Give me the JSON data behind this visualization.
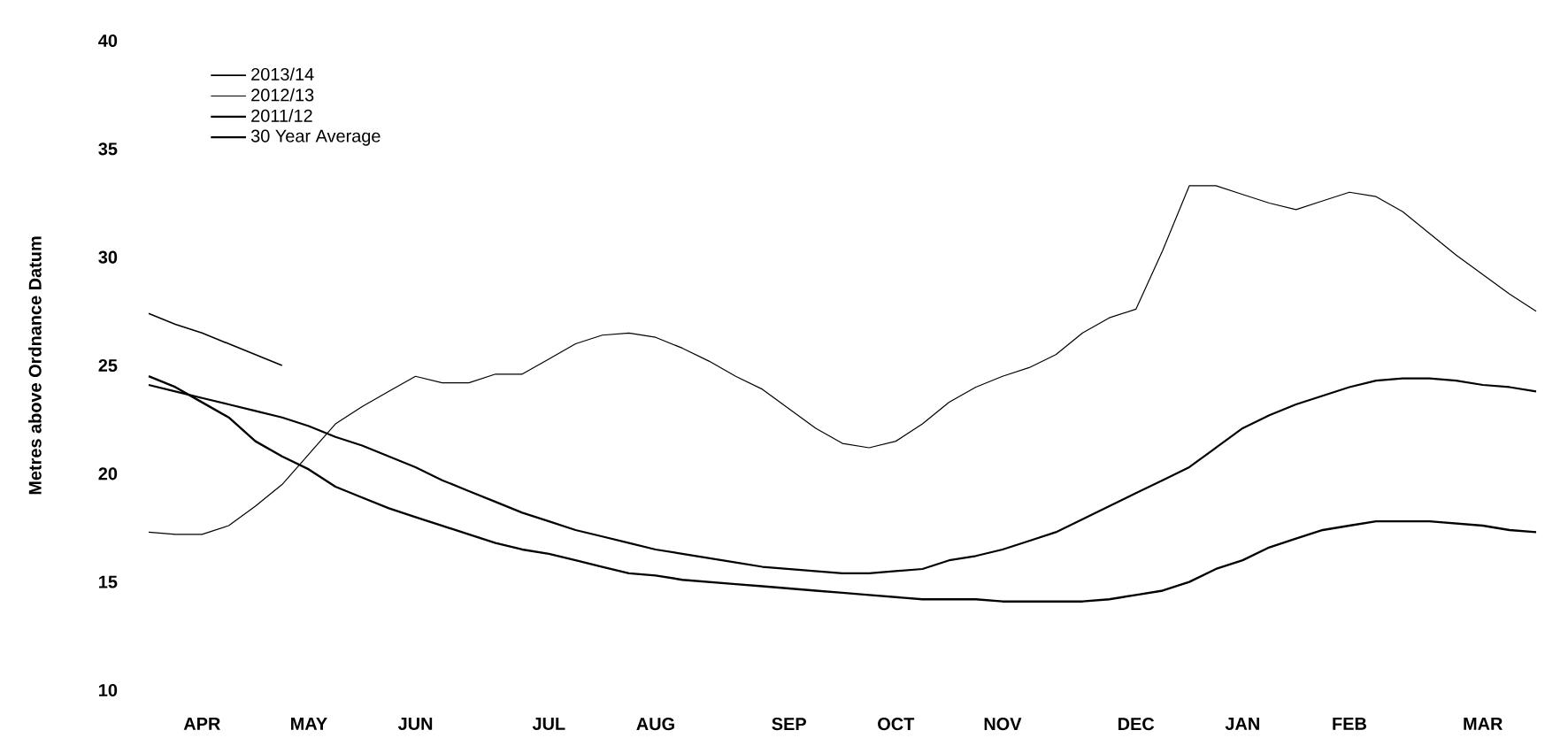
{
  "chart_data": {
    "type": "line",
    "ylabel": "Metres above Ordnance Datum",
    "categories": [
      null,
      null,
      "APR",
      null,
      null,
      null,
      "MAY",
      null,
      null,
      null,
      "JUN",
      null,
      null,
      null,
      null,
      "JUL",
      null,
      null,
      null,
      "AUG",
      null,
      null,
      null,
      null,
      "SEP",
      null,
      null,
      null,
      "OCT",
      null,
      null,
      null,
      "NOV",
      null,
      null,
      null,
      null,
      "DEC",
      null,
      null,
      null,
      "JAN",
      null,
      null,
      null,
      "FEB",
      null,
      null,
      null,
      null,
      "MAR",
      null,
      null
    ],
    "ylim": [
      10,
      40
    ],
    "yticks": [
      10,
      15,
      20,
      25,
      30,
      35,
      40
    ],
    "legend": "top left",
    "marker": "none",
    "series": [
      {
        "name": "2013/14",
        "color": "#000000",
        "values": [
          27.4,
          26.9,
          26.5,
          26.0,
          25.5,
          25.0,
          null,
          null,
          null,
          null,
          null,
          null,
          null,
          null,
          null,
          null,
          null,
          null,
          null,
          null,
          null,
          null,
          null,
          null,
          null,
          null,
          null,
          null,
          null,
          null,
          null,
          null,
          null,
          null,
          null,
          null,
          null,
          null,
          null,
          null,
          null,
          null,
          null,
          null,
          null,
          null,
          null,
          null,
          null,
          null,
          null,
          null,
          null
        ]
      },
      {
        "name": "2012/13",
        "color": "#000000",
        "values": [
          17.3,
          17.2,
          17.2,
          17.6,
          18.5,
          19.5,
          20.9,
          22.3,
          23.1,
          23.8,
          24.5,
          24.2,
          24.2,
          24.6,
          24.6,
          25.3,
          26.0,
          26.4,
          26.5,
          26.3,
          25.8,
          25.2,
          24.5,
          23.9,
          23.0,
          22.1,
          21.4,
          21.2,
          21.5,
          22.3,
          23.3,
          24.0,
          24.5,
          24.9,
          25.5,
          26.5,
          27.2,
          27.6,
          30.3,
          33.3,
          33.3,
          32.9,
          32.5,
          32.2,
          32.6,
          33.0,
          32.8,
          32.1,
          31.1,
          30.1,
          29.2,
          28.3,
          27.5
        ]
      },
      {
        "name": "2011/12",
        "color": "#000000",
        "values": [
          24.5,
          24.0,
          23.3,
          22.6,
          21.5,
          20.8,
          20.2,
          19.4,
          18.9,
          18.4,
          18.0,
          17.6,
          17.2,
          16.8,
          16.5,
          16.3,
          16.0,
          15.7,
          15.4,
          15.3,
          15.1,
          15.0,
          14.9,
          14.8,
          14.7,
          14.6,
          14.5,
          14.4,
          14.3,
          14.2,
          14.2,
          14.2,
          14.1,
          14.1,
          14.1,
          14.1,
          14.2,
          14.4,
          14.6,
          15.0,
          15.6,
          16.0,
          16.6,
          17.0,
          17.4,
          17.6,
          17.8,
          17.8,
          17.8,
          17.7,
          17.6,
          17.4,
          17.3
        ]
      },
      {
        "name": "30 Year Average",
        "color": "#000000",
        "values": [
          24.1,
          23.8,
          23.5,
          23.2,
          22.9,
          22.6,
          22.2,
          21.7,
          21.3,
          20.8,
          20.3,
          19.7,
          19.2,
          18.7,
          18.2,
          17.8,
          17.4,
          17.1,
          16.8,
          16.5,
          16.3,
          16.1,
          15.9,
          15.7,
          15.6,
          15.5,
          15.4,
          15.4,
          15.5,
          15.6,
          16.0,
          16.2,
          16.5,
          16.9,
          17.3,
          17.9,
          18.5,
          19.1,
          19.7,
          20.3,
          21.2,
          22.1,
          22.7,
          23.2,
          23.6,
          24.0,
          24.3,
          24.4,
          24.4,
          24.3,
          24.1,
          24.0,
          23.8
        ]
      }
    ]
  }
}
